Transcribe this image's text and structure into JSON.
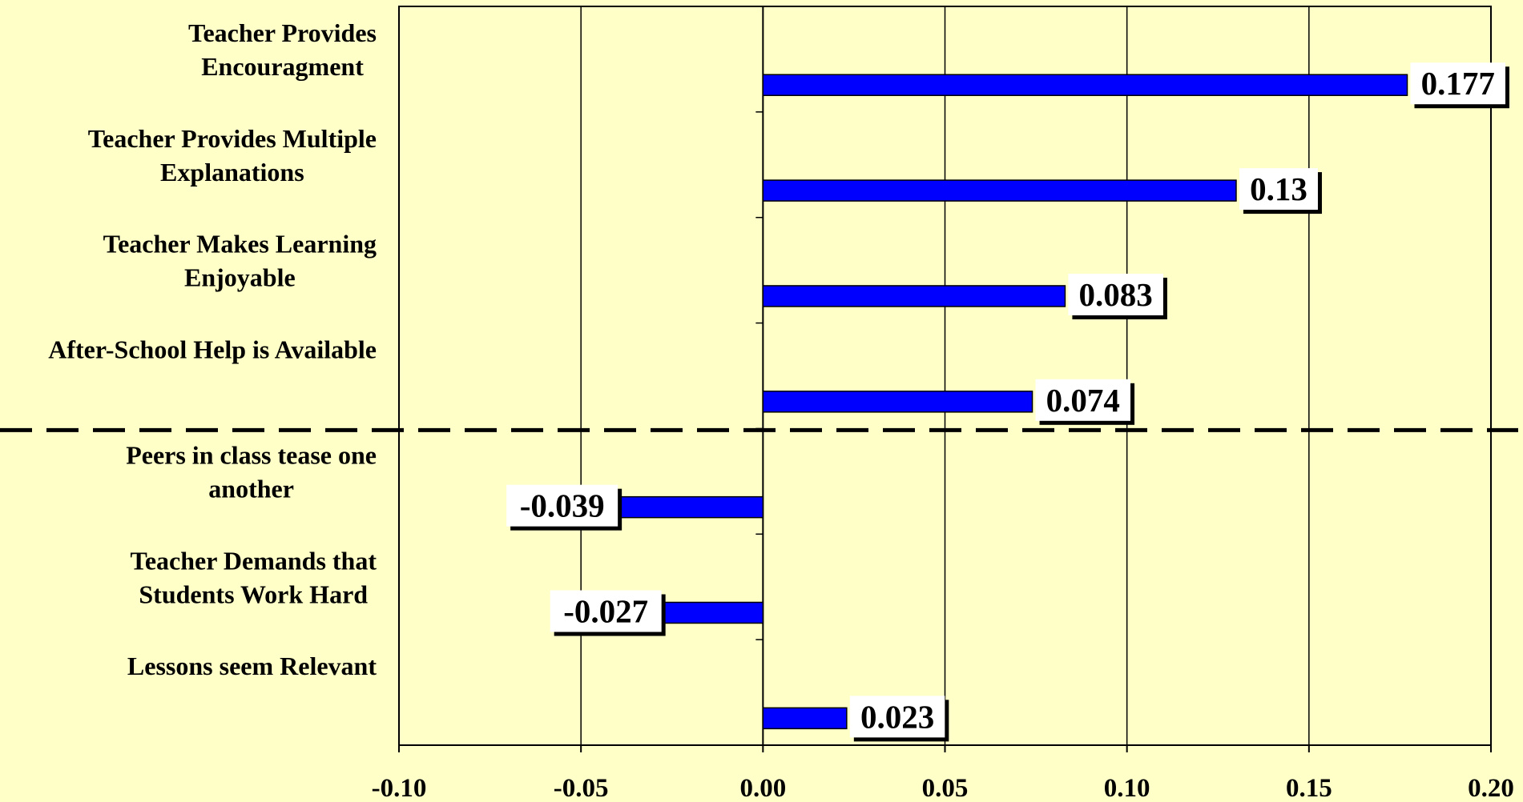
{
  "chart_data": {
    "type": "bar",
    "orientation": "horizontal",
    "categories": [
      [
        "Teacher Provides",
        "Encouragment"
      ],
      [
        "Teacher Provides Multiple",
        "Explanations"
      ],
      [
        "Teacher Makes Learning",
        "Enjoyable"
      ],
      [
        "After-School Help is Available"
      ],
      [
        "Peers in class tease one",
        "another"
      ],
      [
        "Teacher Demands that",
        "Students Work Hard"
      ],
      [
        "Lessons seem Relevant"
      ]
    ],
    "values": [
      0.177,
      0.13,
      0.083,
      0.074,
      -0.039,
      -0.027,
      0.023
    ],
    "data_labels": [
      "0.177",
      "0.13",
      "0.083",
      "0.074",
      "-0.039",
      "-0.027",
      "0.023"
    ],
    "xlim": [
      -0.1,
      0.2
    ],
    "xticks": [
      "-0.10",
      "-0.05",
      "0.00",
      "0.05",
      "0.10",
      "0.15",
      "0.20"
    ],
    "xtick_values": [
      -0.1,
      -0.05,
      0.0,
      0.05,
      0.1,
      0.15,
      0.2
    ],
    "grid": "vertical",
    "separator_after_index": 3,
    "title": "",
    "xlabel": "",
    "ylabel": "",
    "colors": {
      "background": "#ffffc8",
      "bar": "#0000ff",
      "axis": "#000000",
      "label_box": "#ffffff"
    }
  }
}
